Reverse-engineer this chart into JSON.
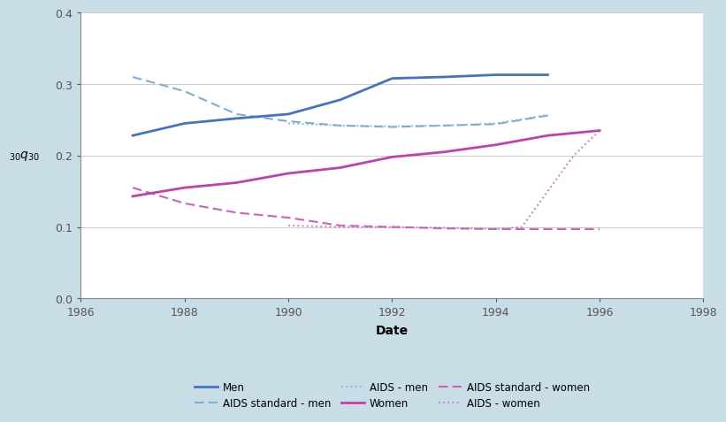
{
  "men_solid": {
    "x": [
      1987,
      1988,
      1989,
      1990,
      1991,
      1992,
      1993,
      1994,
      1995
    ],
    "y": [
      0.228,
      0.245,
      0.252,
      0.258,
      0.278,
      0.308,
      0.31,
      0.313,
      0.313
    ]
  },
  "women_solid": {
    "x": [
      1987,
      1988,
      1989,
      1990,
      1991,
      1992,
      1993,
      1994,
      1995,
      1996
    ],
    "y": [
      0.143,
      0.155,
      0.162,
      0.175,
      0.183,
      0.198,
      0.205,
      0.215,
      0.228,
      0.235
    ]
  },
  "aids_standard_men": {
    "x": [
      1987,
      1988,
      1989,
      1990,
      1991,
      1992,
      1993,
      1994,
      1995
    ],
    "y": [
      0.31,
      0.29,
      0.258,
      0.248,
      0.242,
      0.24,
      0.242,
      0.244,
      0.256
    ]
  },
  "aids_standard_women": {
    "x": [
      1987,
      1988,
      1989,
      1990,
      1991,
      1992,
      1993,
      1994,
      1995,
      1996
    ],
    "y": [
      0.155,
      0.133,
      0.12,
      0.113,
      0.102,
      0.1,
      0.098,
      0.097,
      0.097,
      0.097
    ]
  },
  "aids_men": {
    "x": [
      1990,
      1991,
      1992,
      1993,
      1994,
      1995
    ],
    "y": [
      0.245,
      0.242,
      0.241,
      0.242,
      0.245,
      0.257
    ]
  },
  "aids_women": {
    "x": [
      1990,
      1991,
      1992,
      1993,
      1994,
      1994.5,
      1995.5,
      1996
    ],
    "y": [
      0.102,
      0.1,
      0.1,
      0.099,
      0.097,
      0.1,
      0.2,
      0.235
    ]
  },
  "color_men": "#4472c4",
  "color_women": "#c040b0",
  "color_aids_std_men": "#7ab0d8",
  "color_aids_std_women": "#d060c0",
  "color_aids_men": "#8ab8e0",
  "color_aids_women": "#d878d0",
  "xlim": [
    1986,
    1998
  ],
  "ylim": [
    0.0,
    0.4
  ],
  "xticks": [
    1986,
    1988,
    1990,
    1992,
    1994,
    1996,
    1998
  ],
  "yticks": [
    0.0,
    0.1,
    0.2,
    0.3,
    0.4
  ],
  "xlabel": "Date",
  "ylabel": "$_{30}q_{30}$",
  "bg_color": "#c8dde6",
  "plot_bg": "#ffffff"
}
